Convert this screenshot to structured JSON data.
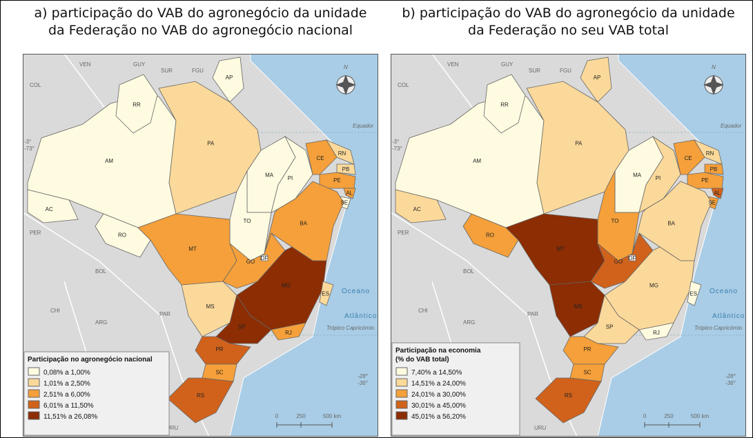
{
  "geo_labels": [
    "VEN",
    "GUY",
    "SUR",
    "FGU",
    "COL",
    "Equador",
    "-3°",
    "-73°",
    "PER",
    "BOL",
    "CHI",
    "ARG",
    "PAR",
    "URU",
    "Oceano",
    "Atlântico",
    "Trópico Capricórnio",
    "-28°",
    "-36°",
    "N"
  ],
  "scale": [
    "0",
    "250",
    "500 km"
  ],
  "maps": [
    {
      "title": [
        "a) participação do VAB do agronegócio da unidade",
        "da Federação no VAB do agronegócio nacional"
      ],
      "legend_title": [
        "Participação no agronegócio nacional"
      ],
      "legend": [
        {
          "label": "0,08% a 1,00%",
          "color": "#fefbe0"
        },
        {
          "label": "1,01% a 2,50%",
          "color": "#fbd99a"
        },
        {
          "label": "2,51% a 6,00%",
          "color": "#f5a03a"
        },
        {
          "label": "6,01% a 11,50%",
          "color": "#d0621c"
        },
        {
          "label": "11,51% a 26,08%",
          "color": "#8c2d04"
        }
      ],
      "states": [
        {
          "label": "AM",
          "color": "#fefbe0"
        },
        {
          "label": "RR",
          "color": "#fefbe0"
        },
        {
          "label": "AC",
          "color": "#fefbe0"
        },
        {
          "label": "RO",
          "color": "#fefbe0"
        },
        {
          "label": "PA",
          "color": "#fbd99a"
        },
        {
          "label": "AP",
          "color": "#fefbe0"
        },
        {
          "label": "MA",
          "color": "#fefbe0"
        },
        {
          "label": "TO",
          "color": "#fefbe0"
        },
        {
          "label": "PI",
          "color": "#fefbe0"
        },
        {
          "label": "CE",
          "color": "#f5a03a"
        },
        {
          "label": "RN",
          "color": "#fbd99a"
        },
        {
          "label": "PB",
          "color": "#fbd99a"
        },
        {
          "label": "PE",
          "color": "#f5a03a"
        },
        {
          "label": "AL",
          "color": "#f5a03a"
        },
        {
          "label": "SE",
          "color": "#fefbe0"
        },
        {
          "label": "BA",
          "color": "#f5a03a"
        },
        {
          "label": "MT",
          "color": "#f5a03a"
        },
        {
          "label": "GO",
          "color": "#f5a03a"
        },
        {
          "label": "DF",
          "color": "#ffffff"
        },
        {
          "label": "MG",
          "color": "#8c2d04"
        },
        {
          "label": "ES",
          "color": "#fbd99a"
        },
        {
          "label": "MS",
          "color": "#fbd99a"
        },
        {
          "label": "SP",
          "color": "#8c2d04"
        },
        {
          "label": "RJ",
          "color": "#f5a03a"
        },
        {
          "label": "PR",
          "color": "#d0621c"
        },
        {
          "label": "SC",
          "color": "#f5a03a"
        },
        {
          "label": "RS",
          "color": "#d0621c"
        }
      ]
    },
    {
      "title": [
        "b) participação do VAB do agronegócio da unidade",
        "da Federação no seu VAB total"
      ],
      "legend_title": [
        "Participação na economia",
        "(% do VAB total)"
      ],
      "legend": [
        {
          "label": "7,40% a 14,50%",
          "color": "#fefbe0"
        },
        {
          "label": "14,51% a 24,00%",
          "color": "#fbd99a"
        },
        {
          "label": "24,01% a 30,00%",
          "color": "#f5a03a"
        },
        {
          "label": "30,01% a 45,00%",
          "color": "#d0621c"
        },
        {
          "label": "45,01% a 56,20%",
          "color": "#8c2d04"
        }
      ],
      "states": [
        {
          "label": "AM",
          "color": "#fefbe0"
        },
        {
          "label": "RR",
          "color": "#fefbe0"
        },
        {
          "label": "AC",
          "color": "#fbd99a"
        },
        {
          "label": "RO",
          "color": "#f5a03a"
        },
        {
          "label": "PA",
          "color": "#fbd99a"
        },
        {
          "label": "AP",
          "color": "#fbd99a"
        },
        {
          "label": "MA",
          "color": "#fefbe0"
        },
        {
          "label": "TO",
          "color": "#f5a03a"
        },
        {
          "label": "PI",
          "color": "#fbd99a"
        },
        {
          "label": "CE",
          "color": "#f5a03a"
        },
        {
          "label": "RN",
          "color": "#fbd99a"
        },
        {
          "label": "PB",
          "color": "#f5a03a"
        },
        {
          "label": "PE",
          "color": "#f5a03a"
        },
        {
          "label": "AL",
          "color": "#d0621c"
        },
        {
          "label": "SE",
          "color": "#f5a03a"
        },
        {
          "label": "BA",
          "color": "#fbd99a"
        },
        {
          "label": "MT",
          "color": "#8c2d04"
        },
        {
          "label": "GO",
          "color": "#d0621c"
        },
        {
          "label": "DF",
          "color": "#ffffff"
        },
        {
          "label": "MG",
          "color": "#fbd99a"
        },
        {
          "label": "ES",
          "color": "#fefbe0"
        },
        {
          "label": "MS",
          "color": "#8c2d04"
        },
        {
          "label": "SP",
          "color": "#fbd99a"
        },
        {
          "label": "RJ",
          "color": "#fefbe0"
        },
        {
          "label": "PR",
          "color": "#f5a03a"
        },
        {
          "label": "SC",
          "color": "#f5a03a"
        },
        {
          "label": "RS",
          "color": "#d0621c"
        }
      ]
    }
  ]
}
